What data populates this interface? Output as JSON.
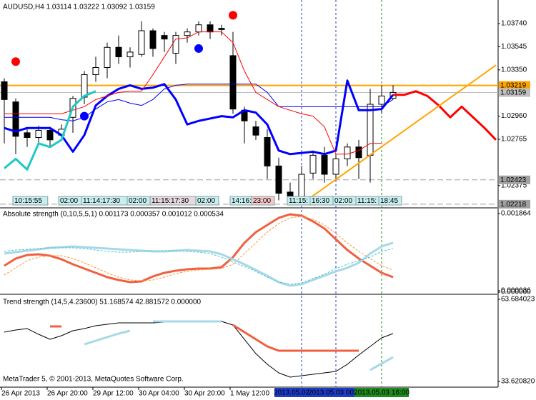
{
  "chart_data": [
    {
      "type": "candlestick",
      "title": "AUDUSD,H4  1.03114 1.03222 1.03092 1.03159",
      "categories": [
        "26 Apr 2013",
        null,
        null,
        null,
        "26 Apr 20:00",
        null,
        null,
        null,
        "29 Apr 12:00",
        null,
        null,
        null,
        "30 Apr 04:00",
        null,
        null,
        null,
        "30 Apr 20:00",
        null,
        null,
        null,
        "1 May 12:00",
        null,
        null,
        null,
        null,
        null,
        "2013.05.02 12:00",
        null,
        null,
        "2013.05.03 00:00",
        null,
        null,
        null,
        "2013.05.03 16:00",
        null,
        null,
        null,
        null,
        null,
        null,
        null,
        null,
        null,
        null
      ],
      "open": [
        1.0325,
        1.0308,
        1.0282,
        1.0278,
        1.0284,
        1.028,
        1.0295,
        1.0312,
        1.0331,
        1.0337,
        1.0354,
        1.0346,
        1.0348,
        1.0368,
        1.0364,
        1.0349,
        1.0364,
        1.0367,
        1.0373,
        1.037,
        1.0347,
        1.0301,
        1.0287,
        1.0278,
        1.0254,
        1.0232,
        1.0228,
        1.0248,
        1.0263,
        1.0247,
        1.026,
        1.027,
        1.0263,
        1.0306,
        1.0311,
        null,
        null,
        null,
        null,
        null,
        null,
        null,
        null,
        null
      ],
      "high": [
        1.0328,
        1.0311,
        1.0286,
        1.0288,
        1.0287,
        1.0289,
        1.0313,
        1.0334,
        1.0346,
        1.0358,
        1.0364,
        1.0354,
        1.0376,
        1.037,
        1.0367,
        1.0367,
        1.037,
        1.0376,
        1.0376,
        1.0373,
        1.0367,
        1.0304,
        1.0292,
        1.0285,
        1.0261,
        1.024,
        1.0254,
        1.0267,
        1.027,
        1.0264,
        1.0273,
        1.0276,
        1.0319,
        1.0322,
        1.0322,
        null,
        null,
        null,
        null,
        null,
        null,
        null,
        null,
        null
      ],
      "low": [
        1.0273,
        1.0264,
        1.027,
        1.0273,
        1.027,
        1.0276,
        1.0282,
        1.0306,
        1.0325,
        1.0328,
        1.034,
        1.0337,
        1.0346,
        1.0346,
        1.035,
        1.034,
        1.0358,
        1.0364,
        1.0361,
        1.0364,
        1.0298,
        1.0273,
        1.0276,
        1.0243,
        1.0225,
        1.0222,
        1.0222,
        1.0243,
        1.024,
        1.0243,
        1.0254,
        1.0243,
        1.024,
        1.0298,
        1.031,
        null,
        null,
        null,
        null,
        null,
        null,
        null,
        null,
        null
      ],
      "close": [
        1.031,
        1.0279,
        1.0278,
        1.0284,
        1.0276,
        1.0285,
        1.0311,
        1.0331,
        1.0337,
        1.0354,
        1.0346,
        1.035,
        1.0368,
        1.0353,
        1.0361,
        1.0364,
        1.0367,
        1.0373,
        1.0367,
        1.0369,
        1.0302,
        1.0292,
        1.028,
        1.0254,
        1.0231,
        1.0228,
        1.0247,
        1.0263,
        1.0247,
        1.026,
        1.027,
        1.0261,
        1.0306,
        1.0313,
        1.0316,
        null,
        null,
        null,
        null,
        null,
        null,
        null,
        null,
        null
      ],
      "up_color": "#ffffff",
      "down_color": "#000000",
      "ylim": [
        1.02193,
        1.03939
      ],
      "yticks": [
        {
          "value": 1.0374,
          "label": "1.03740"
        },
        1.03545,
        {
          "value": 1.0335,
          "label": "1.03350"
        },
        {
          "value": 1.0296,
          "label": "1.02960"
        },
        1.02765,
        1.02375
      ],
      "hlines": [
        {
          "value": 1.03219,
          "color": "#ffa500"
        },
        {
          "value": 1.03159,
          "color": "#c0c0c0"
        },
        {
          "value": 1.02423,
          "color": "#a0a0a0"
        },
        {
          "value": 1.02218,
          "color": "#a0a0a0"
        }
      ],
      "series": [
        {
          "color": "#0000ff",
          "style": "thick",
          "values": [
            1.0286,
            1.0283,
            1.0286,
            1.0286,
            1.0286,
            1.028,
            1.0266,
            1.028,
            1.0305,
            1.0313,
            1.0319,
            1.0322,
            1.0319,
            1.032,
            1.0323,
            1.031,
            1.0289,
            1.0292,
            1.0294,
            1.0296,
            1.0295,
            1.0301,
            1.0299,
            1.0289,
            1.0267,
            1.0264,
            1.0265,
            1.0266,
            1.0264,
            1.0267,
            1.0326,
            1.0301,
            1.0301,
            1.0302,
            1.0314,
            null,
            null,
            null,
            null,
            null,
            null,
            null,
            null,
            null
          ]
        },
        {
          "color": "#0000ff",
          "style": "thin",
          "values": [
            1.0295,
            1.0295,
            1.0295,
            1.0295,
            1.0295,
            1.0293,
            1.0292,
            1.0295,
            1.0302,
            1.0308,
            1.031,
            1.0307,
            1.0305,
            1.031,
            1.0319,
            1.0322,
            1.0323,
            1.0323,
            1.0323,
            1.0323,
            1.0323,
            1.0323,
            1.0323,
            1.0316,
            1.0304,
            1.0304,
            1.0304,
            1.0304,
            1.0304,
            1.0304,
            1.0304,
            1.0304,
            1.0304,
            1.0304,
            1.031,
            null,
            null,
            null,
            null,
            null,
            null,
            null,
            null,
            null
          ]
        },
        {
          "color": "#ff0000",
          "style": "thin",
          "values": [
            1.0298,
            1.0298,
            1.0298,
            1.0298,
            1.0298,
            1.0298,
            1.0301,
            1.0304,
            1.031,
            1.0313,
            1.0316,
            1.0317,
            1.0317,
            1.0331,
            1.0346,
            1.0361,
            1.0362,
            1.0367,
            1.0367,
            1.0367,
            1.0358,
            1.0334,
            1.0316,
            1.031,
            1.0304,
            1.0301,
            1.0298,
            1.0296,
            1.0287,
            1.0264,
            1.0264,
            1.0267,
            1.0273,
            1.0273,
            null,
            null,
            null,
            null,
            null,
            null,
            null,
            null,
            null,
            null
          ]
        },
        {
          "color": "#20c8c8",
          "style": "thick",
          "values": [
            1.0252,
            1.026,
            1.0251,
            1.0273,
            1.027,
            1.0276,
            1.0304,
            1.0313,
            1.0317,
            null,
            null,
            null,
            null,
            null,
            null,
            null,
            null,
            null,
            null,
            null,
            null,
            null,
            null,
            null,
            null,
            null,
            null,
            null,
            null,
            null,
            null,
            null,
            null,
            null,
            null,
            null,
            null,
            null,
            null,
            null,
            null,
            null,
            null,
            null
          ]
        },
        {
          "color": "#ff0000",
          "style": "thick",
          "values": [
            null,
            null,
            null,
            null,
            null,
            null,
            null,
            null,
            null,
            null,
            null,
            null,
            null,
            null,
            null,
            null,
            null,
            null,
            null,
            null,
            null,
            null,
            null,
            null,
            null,
            null,
            null,
            null,
            null,
            null,
            null,
            null,
            null,
            null,
            1.0314,
            1.0314,
            1.0317,
            1.0313,
            1.0305,
            1.0295,
            1.0304,
            1.0295,
            1.0286,
            1.0276
          ]
        },
        {
          "color": "#ff0000",
          "style": "dot",
          "values": [
            null,
            1.0342,
            null,
            null,
            null,
            null,
            null,
            null,
            null,
            null,
            null,
            null,
            null,
            null,
            null,
            null,
            null,
            null,
            null,
            null,
            1.0381,
            null,
            null,
            null,
            null,
            null,
            null,
            null,
            null,
            null,
            null,
            null,
            null,
            null,
            null,
            null,
            null,
            null,
            null,
            null,
            null,
            null,
            null,
            null
          ]
        },
        {
          "color": "#0000ff",
          "style": "dot",
          "values": [
            null,
            null,
            null,
            null,
            null,
            null,
            null,
            1.0296,
            null,
            null,
            null,
            null,
            null,
            null,
            null,
            null,
            null,
            1.0353,
            null,
            null,
            null,
            null,
            null,
            null,
            null,
            null,
            null,
            null,
            null,
            null,
            null,
            null,
            null,
            null,
            null,
            null,
            null,
            null,
            null,
            null,
            null,
            null,
            null,
            null
          ]
        }
      ],
      "trendline": {
        "color": "#ffa500",
        "x": [
          26,
          43
        ],
        "values": [
          1.0222,
          1.0339
        ]
      },
      "markers": [
        {
          "category": "2013.05.02 12:00",
          "color": "#1e3cc8"
        },
        {
          "category": "2013.05.03 00:00",
          "color": "#1e3cc8"
        },
        {
          "category": "2013.05.03 16:00",
          "color": "#1e8c1e"
        }
      ],
      "session_labels": [
        {
          "text": "10:15:55",
          "bg": "#c8eef0",
          "fg": "#000000"
        },
        {
          "text": "02:00",
          "bg": "#c8eef0",
          "fg": "#000000"
        },
        {
          "text": "11:14:17:30",
          "bg": "#c8eef0",
          "fg": "#000000"
        },
        {
          "text": "02:00",
          "bg": "#c8eef0",
          "fg": "#000000"
        },
        {
          "text": "11:15:17:30",
          "bg": "#e8d8e0",
          "fg": "#000000"
        },
        {
          "text": "02:00",
          "bg": "#c8eef0",
          "fg": "#000000"
        },
        {
          "text": "14:16:",
          "bg": "#c8eef0",
          "fg": "#000000"
        },
        {
          "text": "23:00",
          "bg": "#f8c8c8",
          "fg": "#e00000"
        },
        {
          "text": "11:15:",
          "bg": "#c8eef0",
          "fg": "#000000"
        },
        {
          "text": "16:30",
          "bg": "#c8eef0",
          "fg": "#000000"
        },
        {
          "text": "02:00",
          "bg": "#c8eef0",
          "fg": "#000000"
        },
        {
          "text": "11:15:",
          "bg": "#c8eef0",
          "fg": "#000000"
        },
        {
          "text": "18:45",
          "bg": "#c8eef0",
          "fg": "#000000"
        }
      ]
    },
    {
      "type": "line",
      "title": "Absolute strength (0,10,5,5,1) 0.001173 0.000357 0.001012 0.000534",
      "ylim": [
        -3.4e-05,
        0.001966
      ],
      "yticks": [
        0.001864,
        3.6e-05,
        {
          "value": 0,
          "label": "0.000000"
        }
      ],
      "series": [
        {
          "color": "#f06040",
          "style": "thick",
          "values": [
            0.000627,
            0.000797,
            0.000881,
            0.000898,
            0.000864,
            0.00078,
            0.000661,
            0.000559,
            0.000458,
            0.000356,
            0.000288,
            0.000237,
            0.000254,
            0.000373,
            0.000458,
            0.000509,
            0.000542,
            0.000559,
            0.000559,
            0.000593,
            0.000831,
            0.00117,
            0.001424,
            0.001593,
            0.001763,
            0.001848,
            0.001814,
            0.001678,
            0.001509,
            0.001254,
            0.001,
            0.000797,
            0.000627,
            0.000458,
            0.000356
          ]
        },
        {
          "color": "#ff9030",
          "style": "dashed",
          "values": [
            0.000407,
            0.000576,
            0.000746,
            0.000831,
            0.000864,
            0.000864,
            0.000797,
            0.000695,
            0.000576,
            0.000458,
            0.000356,
            0.000288,
            0.000271,
            0.000288,
            0.000356,
            0.000441,
            0.000492,
            0.000525,
            0.000542,
            0.000559,
            0.000661,
            0.000915,
            0.00117,
            0.001424,
            0.001627,
            0.001763,
            0.001797,
            0.001729,
            0.001593,
            0.00139,
            0.00117,
            0.000966,
            0.000797,
            0.000627,
            0.000525
          ]
        },
        {
          "color": "#a8d8e8",
          "style": "thick",
          "values": [
            0.000915,
            0.000949,
            0.000983,
            0.001017,
            0.001051,
            0.001068,
            0.001085,
            0.001068,
            0.001051,
            0.001034,
            0.001017,
            0.001,
            0.000983,
            0.000966,
            0.000966,
            0.000983,
            0.001,
            0.000983,
            0.000966,
            0.000898,
            0.00078,
            0.000661,
            0.000525,
            0.00039,
            0.000237,
            0.000153,
            0.000186,
            0.000288,
            0.00039,
            0.000492,
            0.000576,
            0.000695,
            0.000915,
            0.001085,
            0.00117
          ]
        },
        {
          "color": "#40c8d8",
          "style": "dashed",
          "values": [
            0.000966,
            0.001,
            0.001017,
            0.001034,
            0.001051,
            0.001051,
            0.001051,
            0.001034,
            0.001,
            0.000966,
            0.000949,
            0.000949,
            0.000966,
            0.000983,
            0.000983,
            0.000983,
            0.000966,
            0.000949,
            0.000915,
            0.000831,
            0.000712,
            0.00061,
            0.000492,
            0.000356,
            0.000237,
            0.000186,
            0.00022,
            0.000322,
            0.000424,
            0.000559,
            0.000661,
            0.000746,
            0.000831,
            0.000966,
            0.001034
          ]
        }
      ]
    },
    {
      "type": "line",
      "title": "Trend strength (14,5,4.23600) 51.168574 42.881572 0.000000",
      "ylim": [
        31.529,
        65.253
      ],
      "yticks": [
        63.684023,
        {
          "value": 33.62082,
          "label": "33.620820"
        }
      ],
      "series": [
        {
          "color": "#000000",
          "style": "thin",
          "values": [
            51.65,
            52.44,
            52.96,
            50.87,
            49.04,
            50.35,
            52.18,
            52.96,
            54.01,
            54.53,
            55.05,
            55.05,
            55.05,
            55.05,
            55.32,
            55.32,
            55.58,
            55.58,
            55.58,
            55.58,
            54.27,
            49.04,
            43.81,
            39.89,
            36.75,
            35.19,
            35.71,
            36.23,
            36.75,
            37.28,
            39.89,
            43.29,
            46.43,
            49.57,
            51.13
          ]
        },
        {
          "color": "#f06040",
          "style": "thick",
          "values": [
            null,
            null,
            null,
            null,
            53.75,
            53.75,
            null,
            null,
            null,
            null,
            null,
            null,
            null,
            null,
            null,
            null,
            null,
            null,
            null,
            null,
            54.27,
            51.65,
            49.04,
            46.43,
            44.86,
            44.86,
            44.86,
            44.86,
            44.86,
            44.86,
            44.86,
            44.86,
            null,
            null,
            null
          ]
        },
        {
          "color": "#a8d8e8",
          "style": "thick",
          "values": [
            null,
            null,
            null,
            null,
            null,
            null,
            null,
            47.21,
            48.52,
            49.83,
            51.13,
            52.18,
            null,
            55.58,
            55.58,
            55.58,
            55.58,
            55.58,
            55.58,
            55.58,
            null,
            null,
            null,
            null,
            null,
            null,
            null,
            null,
            null,
            null,
            null,
            null,
            37.8,
            40.15,
            42.5
          ]
        }
      ]
    }
  ],
  "footer": "MetaTrader 5, © 2001-2013, MetaQuotes Software Corp."
}
